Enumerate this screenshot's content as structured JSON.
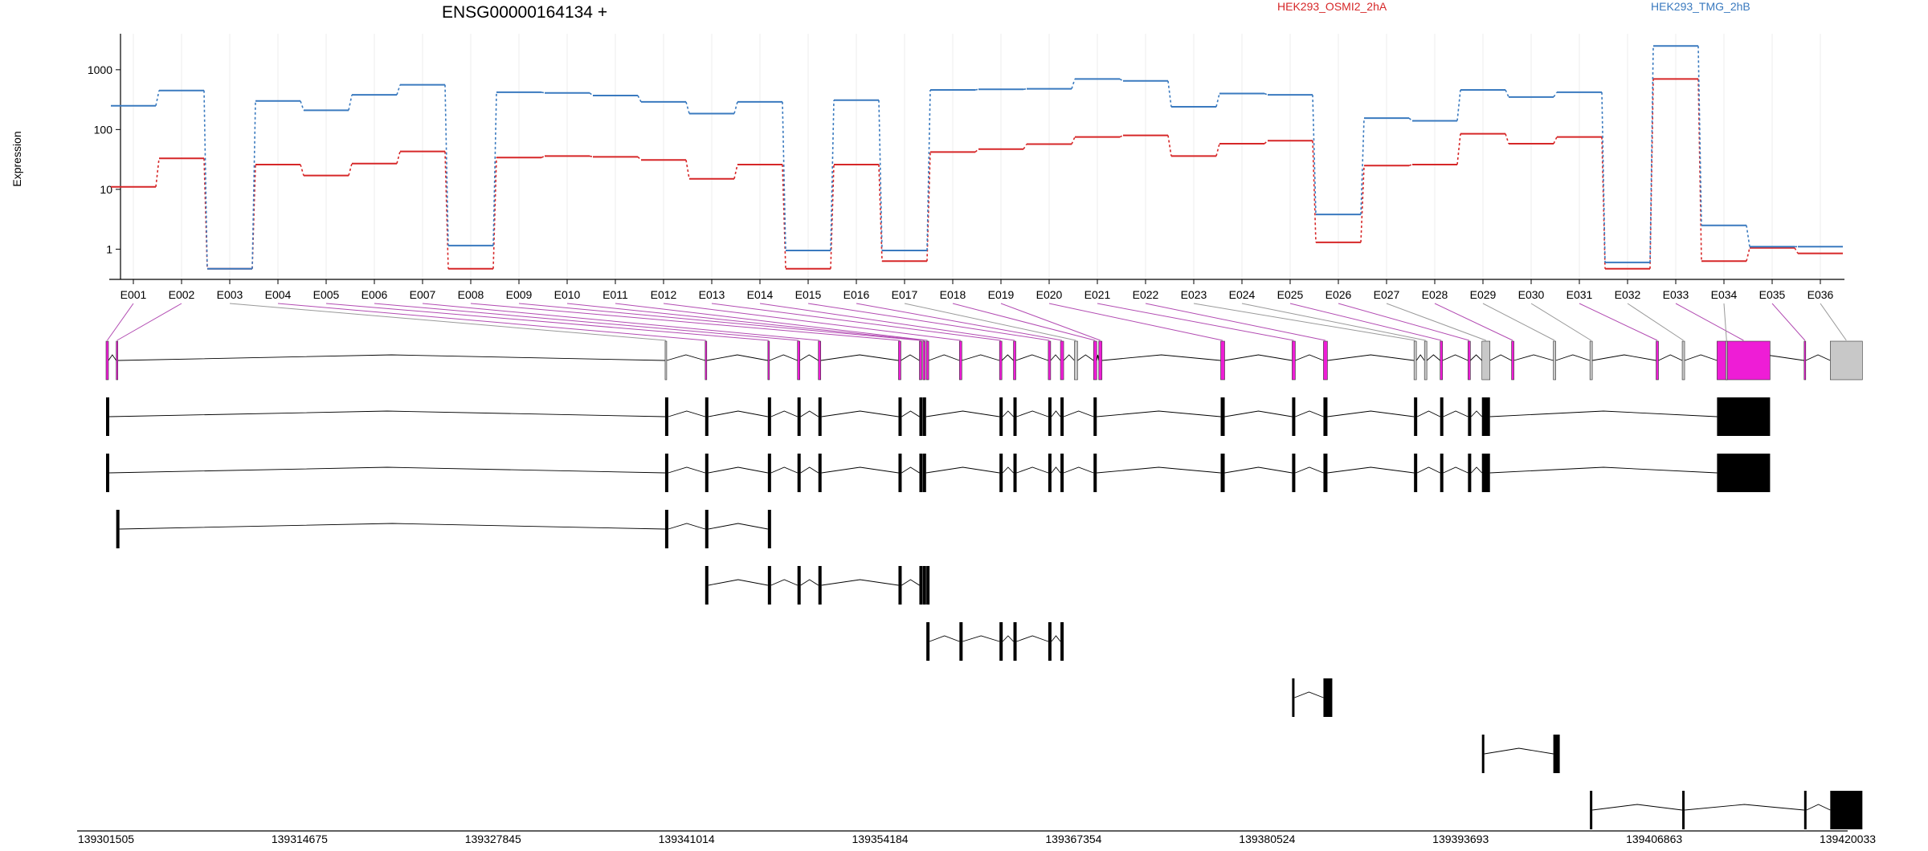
{
  "title": "ENSG00000164134 +",
  "chart_data": {
    "type": "line",
    "ylabel": "Expression",
    "yscale": "log",
    "yticks": [
      1,
      10,
      100,
      1000
    ],
    "ytick_labels": [
      "1",
      "10",
      "100",
      "1000"
    ],
    "exons": [
      "E001",
      "E002",
      "E003",
      "E004",
      "E005",
      "E006",
      "E007",
      "E008",
      "E009",
      "E010",
      "E011",
      "E012",
      "E013",
      "E014",
      "E015",
      "E016",
      "E017",
      "E018",
      "E019",
      "E020",
      "E021",
      "E022",
      "E023",
      "E024",
      "E025",
      "E026",
      "E027",
      "E028",
      "E029",
      "E030",
      "E031",
      "E032",
      "E033",
      "E034",
      "E035",
      "E036"
    ],
    "series": [
      {
        "name": "HEK293_OSMI2_2hA",
        "color": "#d62728",
        "values": [
          11,
          33,
          0.47,
          26,
          17,
          27,
          43,
          0.47,
          34,
          36,
          35,
          31,
          15,
          26,
          0.47,
          26,
          0.63,
          42,
          47,
          57,
          75,
          80,
          36,
          58,
          65,
          1.3,
          25,
          26,
          85,
          58,
          75,
          0.47,
          700,
          0.63,
          1.05,
          0.85
        ]
      },
      {
        "name": "HEK293_TMG_2hB",
        "color": "#3a7abf",
        "values": [
          250,
          450,
          0.47,
          300,
          210,
          380,
          560,
          1.15,
          420,
          410,
          370,
          290,
          185,
          290,
          0.95,
          310,
          0.95,
          460,
          470,
          480,
          700,
          650,
          240,
          400,
          380,
          3.8,
          155,
          140,
          460,
          350,
          420,
          0.6,
          2500,
          2.5,
          1.1,
          1.1
        ]
      }
    ],
    "transcript_counts": {
      "exon_features": 36,
      "transcript_models": 9
    },
    "genomic_coordinates": [
      "139301505",
      "139314675",
      "139327845",
      "139341014",
      "139354184",
      "139367354",
      "139380524",
      "139393693",
      "139406863",
      "139420033"
    ],
    "highlighted_color": "#ee1dd6"
  }
}
